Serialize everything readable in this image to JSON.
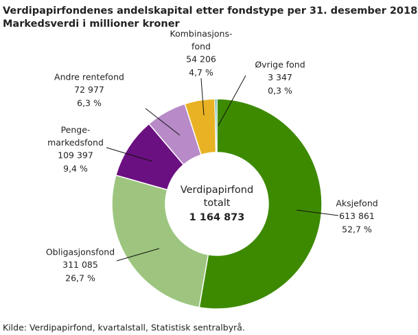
{
  "chart_data": {
    "type": "donut",
    "title": "Verdipapirfondenes andelskapital etter fondstype per 31. desember 2018.",
    "subtitle": "Markedsverdi i millioner kroner",
    "categories": [
      [
        "Aksjefond"
      ],
      [
        "Obligasjonsfond"
      ],
      [
        "Penge-",
        "markedsfond"
      ],
      [
        "Andre rentefond"
      ],
      [
        "Kombinasjons-",
        "fond"
      ],
      [
        "Øvrige fond"
      ]
    ],
    "values": [
      613861,
      311085,
      109397,
      72977,
      54206,
      3347
    ],
    "value_labels": [
      "613 861",
      "311 085",
      "109 397",
      "72 977",
      "54 206",
      "3 347"
    ],
    "percents": [
      52.7,
      26.7,
      9.4,
      6.3,
      4.7,
      0.3
    ],
    "percent_labels": [
      "52,7 %",
      "26,7 %",
      "9,4 %",
      "6,3 %",
      "4,7 %",
      "0,3 %"
    ],
    "colors": [
      "#3d8a00",
      "#9dc57f",
      "#6b1080",
      "#b88ac8",
      "#e8b224",
      "#1a8e8e"
    ],
    "center_label": [
      "Verdipapirfond",
      "totalt"
    ],
    "total": {
      "value": 1164873,
      "label": "1 164 873"
    },
    "source": "Kilde: Verdipapirfond, kvartalstall, Statistisk sentralbyrå."
  }
}
